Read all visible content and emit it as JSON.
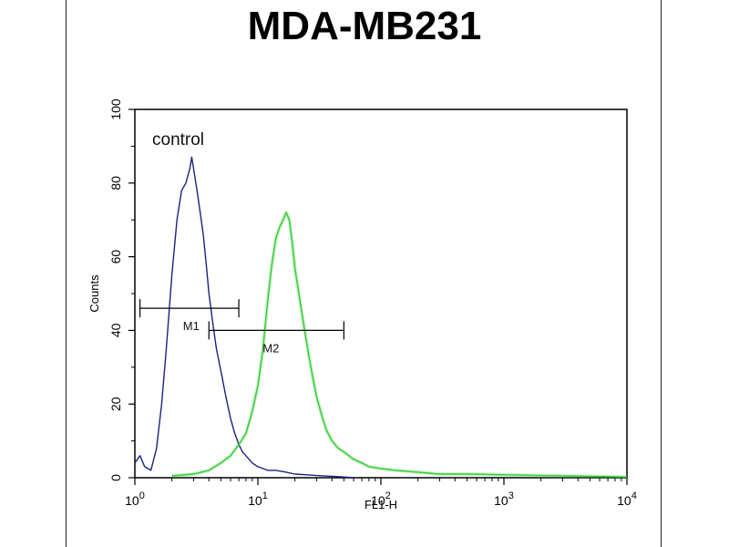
{
  "chart_data": {
    "type": "line",
    "title": "MDA-MB231",
    "xlabel": "FL1-H",
    "ylabel": "Counts",
    "x_scale": "log",
    "xlim": [
      1,
      10000
    ],
    "ylim": [
      0,
      100
    ],
    "x_ticks": [
      {
        "value": 1,
        "base": "10",
        "exp": "0"
      },
      {
        "value": 10,
        "base": "10",
        "exp": "1"
      },
      {
        "value": 100,
        "base": "10",
        "exp": "2"
      },
      {
        "value": 1000,
        "base": "10",
        "exp": "3"
      },
      {
        "value": 10000,
        "base": "10",
        "exp": "4"
      }
    ],
    "y_ticks": [
      "0",
      "20",
      "40",
      "60",
      "80",
      "100"
    ],
    "grid": false,
    "annotation": "control",
    "series": [
      {
        "color": "#1a237e",
        "x": [
          1.0,
          1.1,
          1.2,
          1.35,
          1.5,
          1.65,
          1.8,
          2.0,
          2.2,
          2.4,
          2.6,
          2.8,
          2.9,
          3.0,
          3.2,
          3.4,
          3.6,
          3.8,
          4.0,
          4.3,
          4.6,
          5.0,
          5.5,
          6.0,
          6.5,
          7.0,
          7.5,
          8.0,
          9.0,
          10.0,
          12.0,
          14.0,
          17.0,
          20.0,
          25.0,
          30.0,
          40.0,
          50.0,
          60.0
        ],
        "y": [
          4,
          6,
          3,
          2,
          8,
          20,
          35,
          55,
          70,
          78,
          80,
          84,
          87,
          84,
          78,
          72,
          66,
          58,
          50,
          42,
          35,
          29,
          22,
          16,
          12,
          9,
          7,
          6,
          4,
          3,
          2,
          2,
          1.5,
          1,
          0.8,
          0.6,
          0.4,
          0.2,
          0
        ]
      },
      {
        "color": "#33cc33",
        "x": [
          2.0,
          3.0,
          4.0,
          5.0,
          6.0,
          7.0,
          8.0,
          9.0,
          10.0,
          11.0,
          12.0,
          13.0,
          14.0,
          15.0,
          16.0,
          17.0,
          18.0,
          19.0,
          20.0,
          22.0,
          24.0,
          26.0,
          28.0,
          30.0,
          33.0,
          36.0,
          40.0,
          45.0,
          50.0,
          60.0,
          70.0,
          80.0,
          100.0,
          130.0,
          200.0,
          300.0,
          500.0,
          1000.0,
          2000.0,
          5000.0,
          10000.0
        ],
        "y": [
          0.5,
          1,
          2,
          4,
          6,
          9,
          12,
          18,
          25,
          35,
          48,
          58,
          65,
          68,
          70,
          72,
          70,
          64,
          57,
          48,
          40,
          33,
          27,
          22,
          17,
          13,
          10,
          8,
          7,
          5,
          4,
          3,
          2.5,
          2,
          1.5,
          1,
          1,
          0.8,
          0.6,
          0.4,
          0.2
        ]
      }
    ],
    "markers": [
      {
        "label": "M1",
        "x_start": 1.1,
        "x_end": 7.0,
        "y": 46
      },
      {
        "label": "M2",
        "x_start": 4.0,
        "x_end": 50.0,
        "y": 40
      }
    ]
  }
}
